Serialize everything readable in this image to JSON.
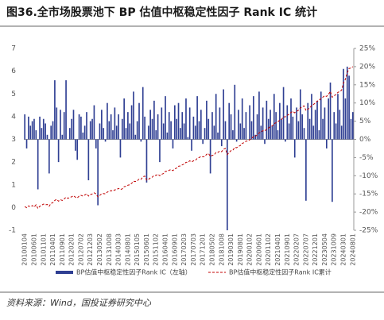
{
  "chart_data": {
    "type": "bar",
    "title": "图36.全市场股票池下 BP 估值中枢稳定性因子 Rank IC 统计",
    "source": "资料来源：Wind，国投证券研究中心",
    "categories": [
      "20100104",
      null,
      null,
      null,
      null,
      "20100601",
      null,
      null,
      null,
      null,
      "20101101",
      null,
      null,
      null,
      null,
      "20110401",
      null,
      null,
      null,
      null,
      "20110901",
      null,
      null,
      null,
      null,
      "20120201",
      null,
      null,
      null,
      null,
      "20120702",
      null,
      null,
      null,
      null,
      "20121203",
      null,
      null,
      null,
      null,
      "20130502",
      null,
      null,
      null,
      null,
      "20131008",
      null,
      null,
      null,
      null,
      "20140303",
      null,
      null,
      null,
      null,
      "20140801",
      null,
      null,
      null,
      null,
      "20150105",
      null,
      null,
      null,
      null,
      "20150601",
      null,
      null,
      null,
      null,
      "20151102",
      null,
      null,
      null,
      null,
      "20160401",
      null,
      null,
      null,
      null,
      "20160901",
      null,
      null,
      null,
      null,
      "20170203",
      null,
      null,
      null,
      null,
      "20170703",
      null,
      null,
      null,
      null,
      "20171201",
      null,
      null,
      null,
      null,
      "20180502",
      null,
      null,
      null,
      null,
      "20181008",
      null,
      null,
      null,
      null,
      "20190301",
      null,
      null,
      null,
      null,
      "20190801",
      null,
      null,
      null,
      null,
      "20200102",
      null,
      null,
      null,
      null,
      "20200601",
      null,
      null,
      null,
      null,
      "20201102",
      null,
      null,
      null,
      null,
      "20210401",
      null,
      null,
      null,
      null,
      "20210901",
      null,
      null,
      null,
      null,
      "20220207",
      null,
      null,
      null,
      null,
      "20220707",
      null,
      null,
      null,
      null,
      "20221201",
      null,
      null,
      null,
      null,
      "20230504",
      null,
      null,
      null,
      null,
      "20231009",
      null,
      null,
      null,
      null,
      "20240301",
      null,
      null,
      null,
      null,
      "20240801"
    ],
    "series": [
      {
        "name": "BP估值中枢稳定性因子Rank IC（左轴）",
        "type": "bar",
        "color": "#2f3f93",
        "values": [
          4.1,
          2.6,
          4.0,
          3.6,
          3.8,
          3.9,
          3.4,
          0.8,
          4.0,
          3.5,
          3.9,
          3.7,
          3.2,
          1.5,
          3.6,
          3.8,
          5.6,
          4.4,
          2.0,
          4.3,
          3.2,
          4.2,
          5.6,
          3.0,
          3.5,
          3.9,
          4.3,
          2.5,
          2.1,
          4.1,
          4.0,
          3.3,
          3.6,
          4.2,
          1.2,
          3.8,
          3.9,
          4.5,
          2.6,
          0.1,
          3.7,
          4.3,
          3.5,
          2.9,
          4.6,
          3.8,
          4.1,
          3.4,
          4.4,
          3.6,
          4.1,
          2.2,
          3.9,
          4.8,
          3.5,
          4.2,
          3.7,
          4.5,
          5.1,
          3.2,
          3.8,
          4.6,
          2.9,
          5.3,
          4.0,
          1.1,
          3.6,
          4.3,
          3.9,
          4.7,
          3.4,
          4.1,
          2.0,
          4.4,
          3.7,
          4.9,
          3.3,
          4.2,
          3.8,
          2.6,
          4.5,
          3.9,
          4.6,
          3.5,
          4.2,
          3.7,
          4.8,
          3.1,
          4.4,
          2.5,
          4.0,
          3.6,
          4.9,
          3.8,
          4.3,
          2.8,
          3.5,
          4.7,
          3.9,
          1.5,
          4.2,
          3.6,
          5.0,
          3.3,
          4.4,
          2.7,
          5.2,
          3.8,
          -1.0,
          4.6,
          4.1,
          3.4,
          5.4,
          2.9,
          4.3,
          3.7,
          4.8,
          3.5,
          4.2,
          3.0,
          4.5,
          3.8,
          4.9,
          3.2,
          4.1,
          5.1,
          3.6,
          4.4,
          2.8,
          4.7,
          3.9,
          4.3,
          3.6,
          5.0,
          4.2,
          3.4,
          4.6,
          3.9,
          5.3,
          2.9,
          4.5,
          3.7,
          4.8,
          4.0,
          2.2,
          4.4,
          3.8,
          5.2,
          4.1,
          3.5,
          0.3,
          4.6,
          3.9,
          5.0,
          3.6,
          4.3,
          4.7,
          3.4,
          5.1,
          3.9,
          4.4,
          2.6,
          4.8,
          5.5,
          0.25,
          4.2,
          3.7,
          5.0,
          4.3,
          3.6,
          6.1,
          4.8,
          6.2,
          5.8,
          3.9,
          4.2
        ]
      },
      {
        "name": "BP估值中枢稳定性因子Rank IC累计",
        "type": "line",
        "axis": "y2",
        "color": "#c00000",
        "values": [
          -18.5,
          -18.8,
          -18.3,
          -18.5,
          -18.2,
          -18.6,
          -18.0,
          -19.0,
          -18.4,
          -18.1,
          -17.8,
          -18.0,
          -17.9,
          -18.4,
          -17.6,
          -17.4,
          -16.8,
          -16.5,
          -17.0,
          -16.6,
          -16.8,
          -16.4,
          -15.9,
          -16.2,
          -16.0,
          -15.8,
          -15.5,
          -15.9,
          -16.1,
          -15.6,
          -15.4,
          -15.6,
          -15.3,
          -15.0,
          -15.6,
          -15.2,
          -15.0,
          -14.7,
          -15.0,
          -15.8,
          -15.4,
          -15.0,
          -14.9,
          -15.0,
          -14.5,
          -14.3,
          -14.1,
          -14.2,
          -13.9,
          -13.8,
          -13.5,
          -13.8,
          -13.6,
          -13.0,
          -12.9,
          -12.6,
          -12.5,
          -12.1,
          -11.5,
          -11.6,
          -11.4,
          -10.9,
          -11.0,
          -10.3,
          -10.1,
          -11.2,
          -11.0,
          -10.6,
          -10.4,
          -9.9,
          -9.9,
          -9.6,
          -10.0,
          -9.6,
          -9.4,
          -8.8,
          -8.8,
          -8.5,
          -8.3,
          -8.6,
          -8.1,
          -7.9,
          -7.4,
          -7.3,
          -7.0,
          -6.8,
          -6.3,
          -6.3,
          -5.9,
          -6.2,
          -5.9,
          -5.8,
          -5.2,
          -5.0,
          -4.7,
          -4.8,
          -4.7,
          -4.1,
          -3.9,
          -4.7,
          -4.4,
          -4.3,
          -3.6,
          -3.6,
          -3.2,
          -3.4,
          -2.7,
          -2.5,
          -4.2,
          -3.6,
          -3.1,
          -3.0,
          -2.2,
          -2.3,
          -1.9,
          -1.7,
          -1.1,
          -0.9,
          -0.5,
          -0.5,
          -0.1,
          0.2,
          0.8,
          0.9,
          1.2,
          1.8,
          2.0,
          2.4,
          2.3,
          2.8,
          3.1,
          3.5,
          3.7,
          4.3,
          4.6,
          4.8,
          5.3,
          5.5,
          6.2,
          6.2,
          6.6,
          6.9,
          7.4,
          7.7,
          7.3,
          7.7,
          8.0,
          8.6,
          9.0,
          9.2,
          7.9,
          8.3,
          8.6,
          9.3,
          9.6,
          10.0,
          10.5,
          10.7,
          11.3,
          11.6,
          12.0,
          11.8,
          12.4,
          13.2,
          11.6,
          12.0,
          12.3,
          12.9,
          13.2,
          13.5,
          15.5,
          16.5,
          18.3,
          19.5,
          19.6,
          20.0
        ]
      }
    ],
    "ylim": [
      -1,
      7
    ],
    "yticks": [
      -1,
      0,
      1,
      2,
      3,
      4,
      5,
      6,
      7
    ],
    "y2lim": [
      -25,
      25
    ],
    "y2ticks": [
      {
        "value": -25,
        "label": "-25%"
      },
      {
        "value": -20,
        "label": "-20%"
      },
      {
        "value": -15,
        "label": "-15%"
      },
      {
        "value": -10,
        "label": "-10%"
      },
      {
        "value": -5,
        "label": "-5%"
      },
      {
        "value": 0,
        "label": "0%"
      },
      {
        "value": 5,
        "label": "5%"
      },
      {
        "value": 10,
        "label": "10%"
      },
      {
        "value": 15,
        "label": "15%"
      },
      {
        "value": 20,
        "label": "20%"
      },
      {
        "value": 25,
        "label": "25%"
      }
    ],
    "grid": false,
    "legend": "bottom"
  }
}
